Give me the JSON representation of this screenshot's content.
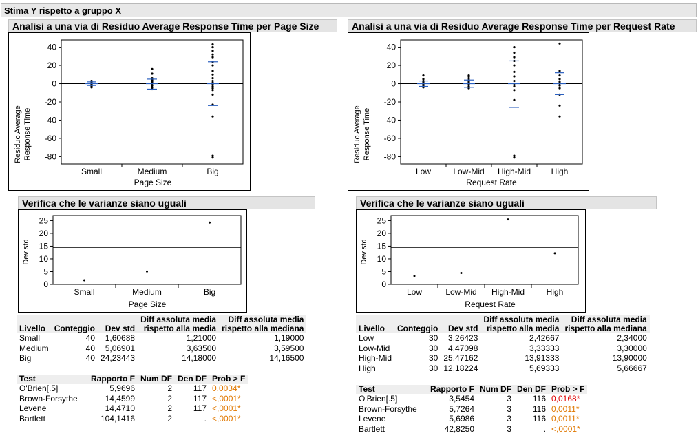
{
  "report_title": "Stima Y rispetto a gruppo X",
  "colors": {
    "mean_line": "#2a5fbf",
    "significant": "#e07800",
    "significant_red": "#e00000",
    "header_bg": "#e4e4e4"
  },
  "left": {
    "oneway_title": "Analisi a una via di Residuo Average Response Time per Page Size",
    "ylabel_line1": "Residuo Average",
    "ylabel_line2": "Response Time",
    "xlabel": "Page Size",
    "variance_title": "Verifica che le varianze siano uguali",
    "var_ylabel": "Dev std",
    "var_xlabel": "Page Size",
    "summary": {
      "headers": {
        "level": "Livello",
        "count": "Conteggio",
        "std": "Dev std",
        "diff_mean_1": "Diff assoluta media",
        "diff_mean_2": "rispetto alla media",
        "diff_median_1": "Diff assoluta media",
        "diff_median_2": "rispetto alla mediana"
      },
      "rows": [
        {
          "level": "Small",
          "count": "40",
          "std": "1,60688",
          "diff_mean": "1,21000",
          "diff_median": "1,19000"
        },
        {
          "level": "Medium",
          "count": "40",
          "std": "5,06901",
          "diff_mean": "3,63500",
          "diff_median": "3,59500"
        },
        {
          "level": "Big",
          "count": "40",
          "std": "24,23443",
          "diff_mean": "14,18000",
          "diff_median": "14,16500"
        }
      ]
    },
    "tests": {
      "headers": {
        "test": "Test",
        "f": "Rapporto F",
        "num_df": "Num DF",
        "den_df": "Den DF",
        "prob": "Prob > F"
      },
      "rows": [
        {
          "test": "O'Brien[.5]",
          "f": "5,9696",
          "num_df": "2",
          "den_df": "117",
          "prob": "0,0034*"
        },
        {
          "test": "Brown-Forsythe",
          "f": "14,4599",
          "num_df": "2",
          "den_df": "117",
          "prob": "<,0001*"
        },
        {
          "test": "Levene",
          "f": "14,4710",
          "num_df": "2",
          "den_df": "117",
          "prob": "<,0001*"
        },
        {
          "test": "Bartlett",
          "f": "104,1416",
          "num_df": "2",
          "den_df": ".",
          "prob": "<,0001*"
        }
      ]
    }
  },
  "right": {
    "oneway_title": "Analisi a una via di Residuo Average Response Time per Request Rate",
    "ylabel_line1": "Residuo Average",
    "ylabel_line2": "Response Time",
    "xlabel": "Request Rate",
    "variance_title": "Verifica che le varianze siano uguali",
    "var_ylabel": "Dev std",
    "var_xlabel": "Request Rate",
    "summary": {
      "headers": {
        "level": "Livello",
        "count": "Conteggio",
        "std": "Dev std",
        "diff_mean_1": "Diff assoluta media",
        "diff_mean_2": "rispetto alla media",
        "diff_median_1": "Diff assoluta media",
        "diff_median_2": "rispetto alla mediana"
      },
      "rows": [
        {
          "level": "Low",
          "count": "30",
          "std": "3,26423",
          "diff_mean": "2,42667",
          "diff_median": "2,34000"
        },
        {
          "level": "Low-Mid",
          "count": "30",
          "std": "4,47098",
          "diff_mean": "3,33333",
          "diff_median": "3,30000"
        },
        {
          "level": "High-Mid",
          "count": "30",
          "std": "25,47162",
          "diff_mean": "13,91333",
          "diff_median": "13,90000"
        },
        {
          "level": "High",
          "count": "30",
          "std": "12,18224",
          "diff_mean": "5,69333",
          "diff_median": "5,66667"
        }
      ]
    },
    "tests": {
      "headers": {
        "test": "Test",
        "f": "Rapporto F",
        "num_df": "Num DF",
        "den_df": "Den DF",
        "prob": "Prob > F"
      },
      "rows": [
        {
          "test": "O'Brien[.5]",
          "f": "3,5454",
          "num_df": "3",
          "den_df": "116",
          "prob": "0,0168*"
        },
        {
          "test": "Brown-Forsythe",
          "f": "5,7264",
          "num_df": "3",
          "den_df": "116",
          "prob": "0,0011*"
        },
        {
          "test": "Levene",
          "f": "5,6986",
          "num_df": "3",
          "den_df": "116",
          "prob": "0,0011*"
        },
        {
          "test": "Bartlett",
          "f": "42,8250",
          "num_df": "3",
          "den_df": ".",
          "prob": "<,0001*"
        }
      ]
    }
  },
  "chart_data": [
    {
      "type": "scatter",
      "title": "Analisi a una via di Residuo Average Response Time per Page Size",
      "xlabel": "Page Size",
      "ylabel": "Residuo Average Response Time",
      "ylim": [
        -88,
        48
      ],
      "yticks": [
        -80,
        -60,
        -40,
        -20,
        0,
        20,
        40
      ],
      "categories": [
        "Small",
        "Medium",
        "Big"
      ],
      "points": [
        [
          -4,
          -3,
          -2,
          -1,
          0,
          1,
          2,
          3
        ],
        [
          -6,
          -4,
          -2,
          0,
          2,
          4,
          6,
          11,
          16
        ],
        [
          -81,
          -79,
          -36,
          -23,
          -12,
          -7,
          -5,
          -3,
          -1,
          0,
          1,
          3,
          6,
          10,
          14,
          20,
          24,
          29,
          32,
          36,
          40,
          43
        ]
      ],
      "mean_std_marks": [
        [
          -2,
          0,
          2
        ],
        [
          -6,
          0,
          5
        ],
        [
          -24,
          0,
          24
        ]
      ]
    },
    {
      "type": "scatter",
      "title": "Analisi a una via di Residuo Average Response Time per Request Rate",
      "xlabel": "Request Rate",
      "ylabel": "Residuo Average Response Time",
      "ylim": [
        -88,
        48
      ],
      "yticks": [
        -80,
        -60,
        -40,
        -20,
        0,
        20,
        40
      ],
      "categories": [
        "Low",
        "Low-Mid",
        "High-Mid",
        "High"
      ],
      "points": [
        [
          -4,
          -2,
          -1,
          0,
          1,
          2,
          3,
          5,
          9
        ],
        [
          -5,
          -3,
          -1,
          0,
          1,
          2,
          4,
          6,
          8,
          9
        ],
        [
          -81,
          -79,
          -18,
          -7,
          -3,
          0,
          3,
          8,
          13,
          20,
          25,
          29,
          34,
          40
        ],
        [
          -36,
          -24,
          -12,
          -5,
          -2,
          0,
          2,
          5,
          9,
          14,
          44
        ]
      ],
      "mean_std_marks": [
        [
          -3,
          0,
          3
        ],
        [
          -4,
          0,
          4
        ],
        [
          -26,
          0,
          25
        ],
        [
          -12,
          0,
          12
        ]
      ]
    },
    {
      "type": "scatter",
      "title": "Verifica che le varianze siano uguali",
      "xlabel": "Page Size",
      "ylabel": "Dev std",
      "ylim": [
        0,
        27
      ],
      "yticks": [
        0,
        5,
        10,
        15,
        20,
        25
      ],
      "categories": [
        "Small",
        "Medium",
        "Big"
      ],
      "values": [
        1.60688,
        5.06901,
        24.23443
      ],
      "reference_line": 14.5
    },
    {
      "type": "scatter",
      "title": "Verifica che le varianze siano uguali",
      "xlabel": "Request Rate",
      "ylabel": "Dev std",
      "ylim": [
        0,
        27
      ],
      "yticks": [
        0,
        5,
        10,
        15,
        20,
        25
      ],
      "categories": [
        "Low",
        "Low-Mid",
        "High-Mid",
        "High"
      ],
      "values": [
        3.26423,
        4.47098,
        25.47162,
        12.18224
      ],
      "reference_line": 14.5
    }
  ]
}
